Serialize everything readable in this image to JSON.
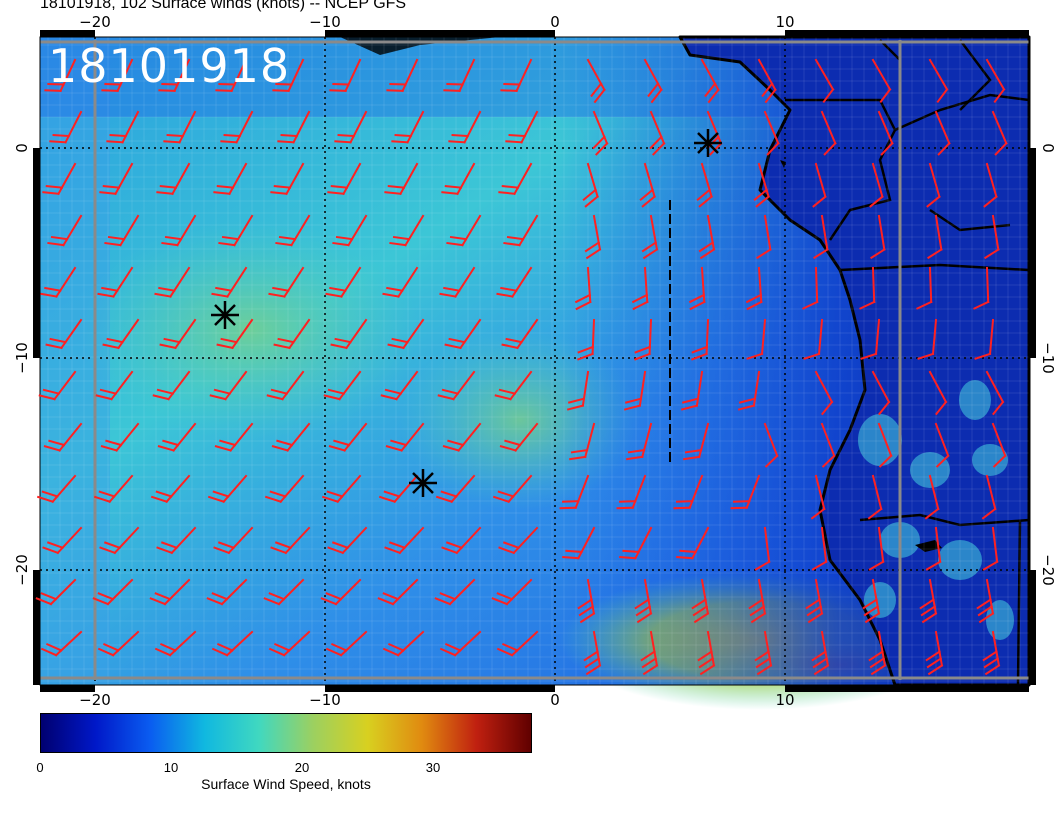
{
  "header": {
    "title": "18101918, 102 Surface winds (knots) -- NCEP GFS"
  },
  "map": {
    "time_stamp": "18101918",
    "lon_ticks": [
      "−20",
      "−10",
      "0",
      "10"
    ],
    "lat_ticks": [
      "0",
      "−10",
      "−20"
    ],
    "colors": {
      "barb": "#ff2020",
      "land": "#0a1f9a",
      "gridline": "#000000",
      "domain_box": "#888888"
    }
  },
  "colorbar": {
    "ticks": [
      "0",
      "10",
      "20",
      "30"
    ],
    "caption": "Surface Wind Speed, knots",
    "gradient": [
      "#000070",
      "#0018c8",
      "#0a5cf0",
      "#10b8e0",
      "#40d8c0",
      "#9cd060",
      "#d8d020",
      "#e08a10",
      "#c02010",
      "#600000"
    ]
  }
}
